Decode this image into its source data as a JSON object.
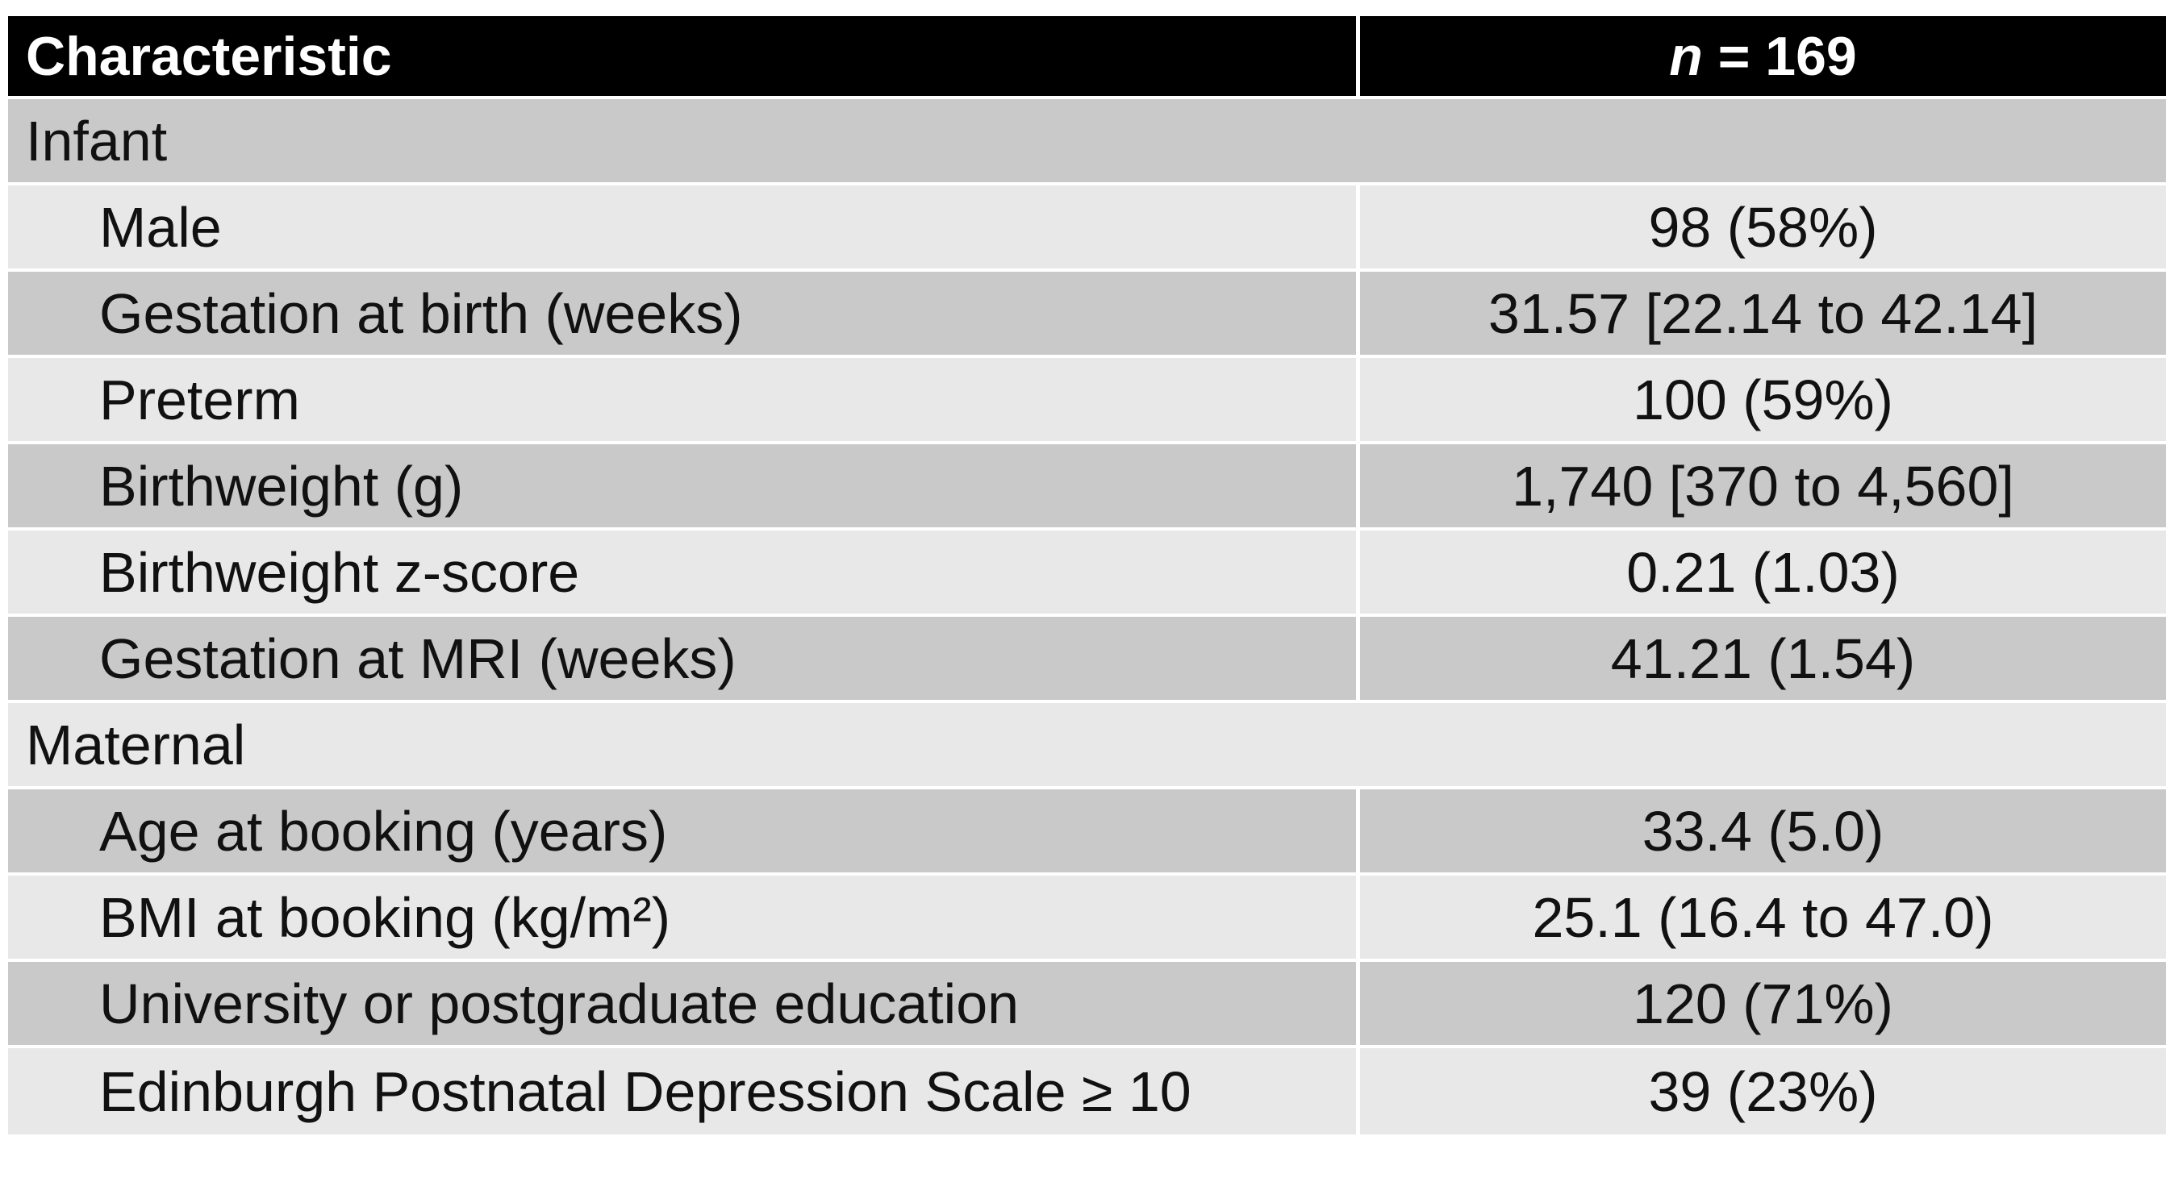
{
  "table": {
    "header": {
      "characteristic": "Characteristic",
      "n_label": "n",
      "n_value": " = 169"
    },
    "sections": [
      {
        "title": "Infant",
        "rows": [
          {
            "label": "Male",
            "value": "98 (58%)"
          },
          {
            "label": "Gestation at birth (weeks)",
            "value": "31.57 [22.14 to 42.14]"
          },
          {
            "label": "Preterm",
            "value": "100 (59%)"
          },
          {
            "label": "Birthweight (g)",
            "value": "1,740 [370 to 4,560]"
          },
          {
            "label": "Birthweight z-score",
            "value": "0.21 (1.03)"
          },
          {
            "label": "Gestation at MRI (weeks)",
            "value": "41.21 (1.54)"
          }
        ]
      },
      {
        "title": "Maternal",
        "rows": [
          {
            "label": "Age at booking (years)",
            "value": "33.4 (5.0)"
          },
          {
            "label": "BMI at booking (kg/m²)",
            "value": "25.1 (16.4 to 47.0)"
          },
          {
            "label": "University or postgraduate education",
            "value": "120 (71%)"
          },
          {
            "label": "Edinburgh Postnatal Depression Scale ≥ 10",
            "value": "39 (23%)"
          }
        ]
      }
    ]
  }
}
